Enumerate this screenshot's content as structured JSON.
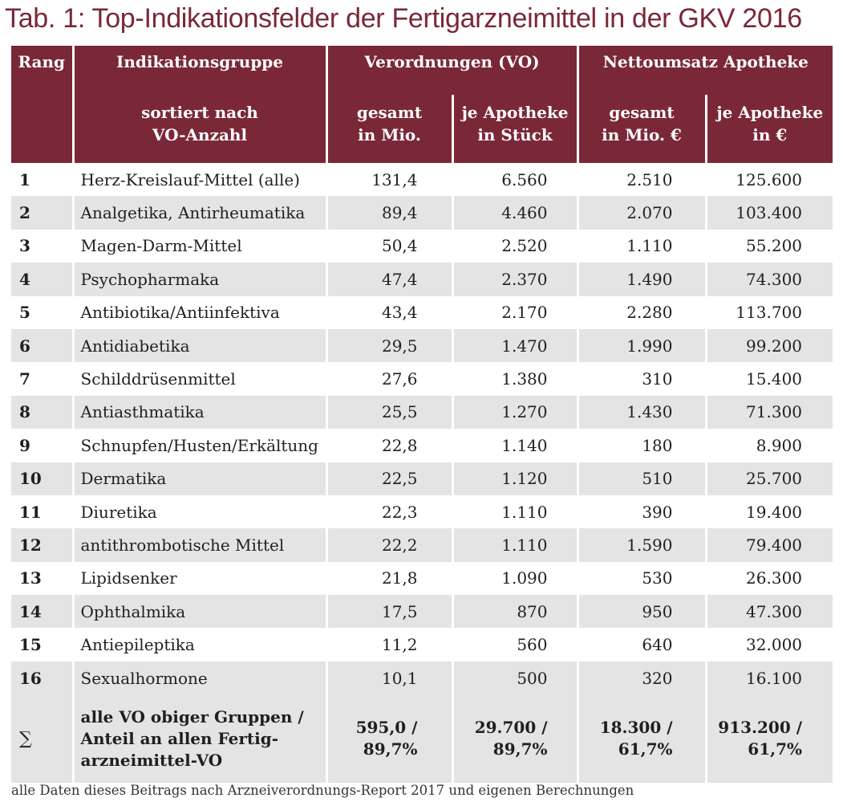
{
  "title": "Tab. 1: Top-Indikationsfelder der Fertigarzneimittel in der GKV 2016",
  "header": {
    "rank": "Rang",
    "group": "Indikationsgruppe",
    "group_sub_1": "sortiert nach",
    "group_sub_2": "VO-Anzahl",
    "vo": "Verordnungen (VO)",
    "vo_total_1": "gesamt",
    "vo_total_2": "in Mio.",
    "vo_pharmacy_1": "je Apotheke",
    "vo_pharmacy_2": "in Stück",
    "revenue": "Nettoumsatz Apotheke",
    "rev_total_1": "gesamt",
    "rev_total_2": "in Mio. €",
    "rev_pharmacy_1": "je Apotheke",
    "rev_pharmacy_2": "in €"
  },
  "rows": [
    {
      "rank": "1",
      "name": "Herz-Kreislauf-Mittel (alle)",
      "vo_total": "131,4",
      "vo_pharmacy": "6.560",
      "rev_total": "2.510",
      "rev_pharmacy": "125.600"
    },
    {
      "rank": "2",
      "name": "Analgetika, Antirheumatika",
      "vo_total": "89,4",
      "vo_pharmacy": "4.460",
      "rev_total": "2.070",
      "rev_pharmacy": "103.400"
    },
    {
      "rank": "3",
      "name": "Magen-Darm-Mittel",
      "vo_total": "50,4",
      "vo_pharmacy": "2.520",
      "rev_total": "1.110",
      "rev_pharmacy": "55.200"
    },
    {
      "rank": "4",
      "name": "Psychopharmaka",
      "vo_total": "47,4",
      "vo_pharmacy": "2.370",
      "rev_total": "1.490",
      "rev_pharmacy": "74.300"
    },
    {
      "rank": "5",
      "name": "Antibiotika/Antiinfektiva",
      "vo_total": "43,4",
      "vo_pharmacy": "2.170",
      "rev_total": "2.280",
      "rev_pharmacy": "113.700"
    },
    {
      "rank": "6",
      "name": "Antidiabetika",
      "vo_total": "29,5",
      "vo_pharmacy": "1.470",
      "rev_total": "1.990",
      "rev_pharmacy": "99.200"
    },
    {
      "rank": "7",
      "name": "Schilddrüsenmittel",
      "vo_total": "27,6",
      "vo_pharmacy": "1.380",
      "rev_total": "310",
      "rev_pharmacy": "15.400"
    },
    {
      "rank": "8",
      "name": "Antiasthmatika",
      "vo_total": "25,5",
      "vo_pharmacy": "1.270",
      "rev_total": "1.430",
      "rev_pharmacy": "71.300"
    },
    {
      "rank": "9",
      "name": "Schnupfen/Husten/Erkältung",
      "vo_total": "22,8",
      "vo_pharmacy": "1.140",
      "rev_total": "180",
      "rev_pharmacy": "8.900"
    },
    {
      "rank": "10",
      "name": "Dermatika",
      "vo_total": "22,5",
      "vo_pharmacy": "1.120",
      "rev_total": "510",
      "rev_pharmacy": "25.700"
    },
    {
      "rank": "11",
      "name": "Diuretika",
      "vo_total": "22,3",
      "vo_pharmacy": "1.110",
      "rev_total": "390",
      "rev_pharmacy": "19.400"
    },
    {
      "rank": "12",
      "name": "antithrombotische Mittel",
      "vo_total": "22,2",
      "vo_pharmacy": "1.110",
      "rev_total": "1.590",
      "rev_pharmacy": "79.400"
    },
    {
      "rank": "13",
      "name": "Lipidsenker",
      "vo_total": "21,8",
      "vo_pharmacy": "1.090",
      "rev_total": "530",
      "rev_pharmacy": "26.300"
    },
    {
      "rank": "14",
      "name": "Ophthalmika",
      "vo_total": "17,5",
      "vo_pharmacy": "870",
      "rev_total": "950",
      "rev_pharmacy": "47.300"
    },
    {
      "rank": "15",
      "name": "Antiepileptika",
      "vo_total": "11,2",
      "vo_pharmacy": "560",
      "rev_total": "640",
      "rev_pharmacy": "32.000"
    },
    {
      "rank": "16",
      "name": "Sexualhormone",
      "vo_total": "10,1",
      "vo_pharmacy": "500",
      "rev_total": "320",
      "rev_pharmacy": "16.100"
    }
  ],
  "sum": {
    "symbol": "∑",
    "name_1": "alle VO obiger Gruppen /",
    "name_2": "Anteil an allen Fertig-",
    "name_3": "arzneimittel-VO",
    "vo_total_1": "595,0 /",
    "vo_total_2": "89,7%",
    "vo_pharmacy_1": "29.700 /",
    "vo_pharmacy_2": "89,7%",
    "rev_total_1": "18.300 /",
    "rev_total_2": "61,7%",
    "rev_pharmacy_1": "913.200 /",
    "rev_pharmacy_2": "61,7%"
  },
  "footnote": "alle Daten dieses Beitrags nach Arzneiverordnungs-Report 2017 und eigenen Berechnungen",
  "colors": {
    "header_bg": "#7a2838",
    "stripe": "#e4e4e4",
    "title": "#7a2838"
  }
}
